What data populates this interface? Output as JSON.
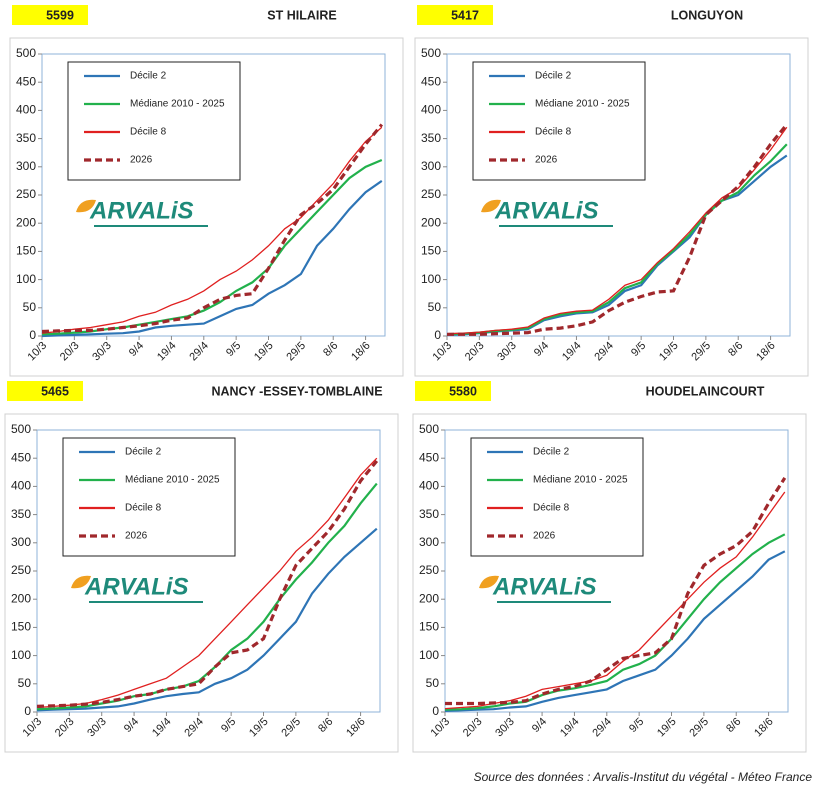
{
  "chart_data": [
    {
      "type": "line",
      "code": "5599",
      "title": "ST HILAIRE",
      "logo": "ARVALiS",
      "categories": [
        "10/3",
        null,
        "20/3",
        null,
        "30/3",
        null,
        "9/4",
        null,
        "19/4",
        null,
        "29/4",
        null,
        "9/5",
        null,
        "19/5",
        null,
        "29/5",
        null,
        "8/6",
        null,
        "18/6",
        null
      ],
      "ylim": [
        0,
        500
      ],
      "yticks": [
        0,
        50,
        100,
        150,
        200,
        250,
        300,
        350,
        400,
        450,
        500
      ],
      "series": [
        {
          "name": "Décile 2",
          "color": "#2e75b6",
          "values": [
            0,
            1,
            2,
            3,
            4,
            5,
            8,
            15,
            18,
            20,
            22,
            35,
            48,
            55,
            75,
            90,
            110,
            160,
            190,
            225,
            255,
            275
          ]
        },
        {
          "name": "Médiane 2010 - 2025",
          "color": "#22b14c",
          "values": [
            3,
            4,
            6,
            8,
            12,
            15,
            20,
            25,
            30,
            35,
            45,
            60,
            80,
            95,
            120,
            160,
            190,
            220,
            250,
            280,
            300,
            312
          ]
        },
        {
          "name": "Décile 8",
          "color": "#e02020",
          "values": [
            5,
            8,
            12,
            15,
            20,
            25,
            35,
            42,
            55,
            65,
            80,
            100,
            115,
            135,
            160,
            190,
            210,
            240,
            270,
            310,
            345,
            370
          ]
        },
        {
          "name": "2026",
          "color": "#a0282c",
          "dashed": true,
          "values": [
            8,
            9,
            10,
            10,
            12,
            15,
            18,
            22,
            28,
            32,
            50,
            65,
            72,
            75,
            120,
            170,
            215,
            235,
            260,
            300,
            340,
            375
          ]
        }
      ]
    },
    {
      "type": "line",
      "code": "5417",
      "title": "LONGUYON",
      "logo": "ARVALiS",
      "categories": [
        "10/3",
        null,
        "20/3",
        null,
        "30/3",
        null,
        "9/4",
        null,
        "19/4",
        null,
        "29/4",
        null,
        "9/5",
        null,
        "19/5",
        null,
        "29/5",
        null,
        "8/6",
        null,
        "18/6",
        null
      ],
      "ylim": [
        0,
        500
      ],
      "yticks": [
        0,
        50,
        100,
        150,
        200,
        250,
        300,
        350,
        400,
        450,
        500
      ],
      "series": [
        {
          "name": "Décile 2",
          "color": "#2e75b6",
          "values": [
            2,
            3,
            5,
            8,
            10,
            12,
            28,
            35,
            40,
            42,
            55,
            80,
            90,
            125,
            150,
            175,
            215,
            240,
            250,
            275,
            300,
            320
          ]
        },
        {
          "name": "Médiane 2010 - 2025",
          "color": "#22b14c",
          "values": [
            3,
            4,
            6,
            9,
            11,
            14,
            30,
            38,
            42,
            44,
            60,
            85,
            95,
            128,
            152,
            180,
            215,
            240,
            255,
            285,
            310,
            340
          ]
        },
        {
          "name": "Décile 8",
          "color": "#e02020",
          "values": [
            4,
            5,
            7,
            10,
            12,
            16,
            32,
            40,
            44,
            46,
            65,
            90,
            100,
            130,
            155,
            185,
            218,
            245,
            262,
            295,
            330,
            370
          ]
        },
        {
          "name": "2026",
          "color": "#a0282c",
          "dashed": true,
          "values": [
            3,
            3,
            3,
            4,
            5,
            6,
            12,
            14,
            18,
            25,
            45,
            60,
            70,
            78,
            80,
            140,
            215,
            240,
            265,
            300,
            340,
            375
          ]
        }
      ]
    },
    {
      "type": "line",
      "code": "5465",
      "title": "NANCY -ESSEY-TOMBLAINE",
      "logo": "ARVALiS",
      "categories": [
        "10/3",
        null,
        "20/3",
        null,
        "30/3",
        null,
        "9/4",
        null,
        "19/4",
        null,
        "29/4",
        null,
        "9/5",
        null,
        "19/5",
        null,
        "29/5",
        null,
        "8/6",
        null,
        "18/6",
        null
      ],
      "ylim": [
        0,
        500
      ],
      "yticks": [
        0,
        50,
        100,
        150,
        200,
        250,
        300,
        350,
        400,
        450,
        500
      ],
      "series": [
        {
          "name": "Décile 2",
          "color": "#2e75b6",
          "values": [
            3,
            4,
            5,
            6,
            8,
            10,
            15,
            22,
            28,
            32,
            35,
            50,
            60,
            75,
            100,
            130,
            160,
            210,
            245,
            275,
            300,
            325
          ]
        },
        {
          "name": "Médiane 2010 - 2025",
          "color": "#22b14c",
          "values": [
            5,
            6,
            8,
            10,
            15,
            20,
            28,
            32,
            40,
            45,
            55,
            80,
            110,
            130,
            160,
            200,
            235,
            265,
            300,
            330,
            370,
            405
          ]
        },
        {
          "name": "Décile 8",
          "color": "#e02020",
          "values": [
            8,
            10,
            12,
            15,
            22,
            30,
            40,
            50,
            60,
            80,
            100,
            130,
            160,
            190,
            220,
            250,
            285,
            310,
            340,
            380,
            420,
            450
          ]
        },
        {
          "name": "2026",
          "color": "#a0282c",
          "dashed": true,
          "values": [
            10,
            11,
            12,
            14,
            17,
            22,
            28,
            32,
            40,
            45,
            50,
            80,
            105,
            110,
            130,
            200,
            260,
            290,
            320,
            360,
            410,
            445
          ]
        }
      ]
    },
    {
      "type": "line",
      "code": "5580",
      "title": "HOUDELAINCOURT",
      "logo": "ARVALiS",
      "categories": [
        "10/3",
        null,
        "20/3",
        null,
        "30/3",
        null,
        "9/4",
        null,
        "19/4",
        null,
        "29/4",
        null,
        "9/5",
        null,
        "19/5",
        null,
        "29/5",
        null,
        "8/6",
        null,
        "18/6",
        null
      ],
      "ylim": [
        0,
        500
      ],
      "yticks": [
        0,
        50,
        100,
        150,
        200,
        250,
        300,
        350,
        400,
        450,
        500
      ],
      "series": [
        {
          "name": "Décile 2",
          "color": "#2e75b6",
          "values": [
            2,
            3,
            4,
            5,
            8,
            10,
            18,
            25,
            30,
            35,
            40,
            55,
            65,
            75,
            100,
            130,
            165,
            190,
            215,
            240,
            270,
            285
          ]
        },
        {
          "name": "Médiane 2010 - 2025",
          "color": "#22b14c",
          "values": [
            4,
            5,
            7,
            10,
            15,
            18,
            30,
            38,
            42,
            48,
            55,
            75,
            85,
            100,
            130,
            165,
            200,
            230,
            255,
            280,
            300,
            315
          ]
        },
        {
          "name": "Décile 8",
          "color": "#e02020",
          "values": [
            6,
            8,
            10,
            15,
            20,
            28,
            40,
            45,
            50,
            55,
            65,
            90,
            110,
            140,
            170,
            200,
            230,
            255,
            275,
            310,
            350,
            390
          ]
        },
        {
          "name": "2026",
          "color": "#a0282c",
          "dashed": true,
          "values": [
            15,
            15,
            15,
            16,
            17,
            20,
            32,
            40,
            45,
            55,
            75,
            95,
            100,
            105,
            130,
            210,
            260,
            280,
            295,
            320,
            370,
            415
          ]
        }
      ]
    }
  ],
  "source": "Source des données : Arvalis-Institut du végétal - Méteo France"
}
